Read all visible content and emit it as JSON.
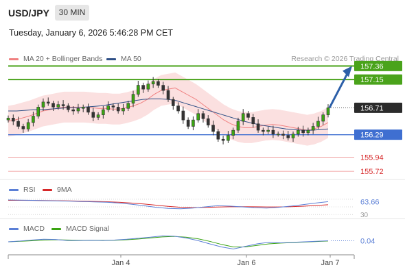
{
  "header": {
    "symbol": "USD/JPY",
    "timeframe": "30 MIN",
    "datetime": "Tuesday, January 6, 2026 5:46:28 PM CET",
    "credit": "Research © 2026 Trading Central"
  },
  "legend_main": [
    {
      "label": "MA 20 + Bollinger Bands",
      "color": "#f08080"
    },
    {
      "label": "MA 50",
      "color": "#2e4f86"
    }
  ],
  "legend_rsi": [
    {
      "label": "RSI",
      "color": "#5b7fd6"
    },
    {
      "label": "9MA",
      "color": "#d62728"
    }
  ],
  "legend_macd": [
    {
      "label": "MACD",
      "color": "#5b7fd6"
    },
    {
      "label": "MACD Signal",
      "color": "#3aa312"
    }
  ],
  "chart_data": [
    {
      "type": "candlestick",
      "panel": "price",
      "ylim": [
        155.55,
        157.45
      ],
      "current_price": 156.71,
      "resistance_levels": [
        157.36,
        157.15
      ],
      "support_levels": [
        156.29,
        155.94,
        155.72
      ],
      "price_labels": [
        "157.36",
        "157.15",
        "156.71",
        "156.29",
        "155.94",
        "155.72"
      ],
      "close_series": [
        156.55,
        156.5,
        156.42,
        156.38,
        156.48,
        156.58,
        156.72,
        156.8,
        156.78,
        156.72,
        156.76,
        156.74,
        156.68,
        156.66,
        156.7,
        156.72,
        156.64,
        156.56,
        156.6,
        156.68,
        156.74,
        156.72,
        156.66,
        156.7,
        156.78,
        156.92,
        157.06,
        157.0,
        157.08,
        157.12,
        157.06,
        156.98,
        156.84,
        156.74,
        156.66,
        156.52,
        156.42,
        156.52,
        156.62,
        156.54,
        156.44,
        156.34,
        156.22,
        156.2,
        156.28,
        156.36,
        156.5,
        156.62,
        156.56,
        156.46,
        156.36,
        156.34,
        156.36,
        156.3,
        156.3,
        156.28,
        156.24,
        156.3,
        156.36,
        156.32,
        156.36,
        156.42,
        156.5,
        156.6,
        156.71
      ],
      "ma20": [
        156.5,
        156.52,
        156.55,
        156.58,
        156.62,
        156.66,
        156.68,
        156.7,
        156.72,
        156.72,
        156.72,
        156.72,
        156.71,
        156.7,
        156.7,
        156.69,
        156.69,
        156.71,
        156.74,
        156.78,
        156.84,
        156.92,
        156.98,
        157.0,
        157.02,
        156.96,
        156.9,
        156.84,
        156.76,
        156.68,
        156.6,
        156.52,
        156.46,
        156.42,
        156.4,
        156.4,
        156.42,
        156.44,
        156.45,
        156.44,
        156.42,
        156.4,
        156.38,
        156.36,
        156.38,
        156.42,
        156.48
      ],
      "ma50": [
        156.66,
        156.66,
        156.67,
        156.68,
        156.68,
        156.69,
        156.7,
        156.71,
        156.71,
        156.72,
        156.73,
        156.74,
        156.76,
        156.78,
        156.8,
        156.82,
        156.84,
        156.85,
        156.85,
        156.84,
        156.82,
        156.78,
        156.74,
        156.7,
        156.66,
        156.62,
        156.58,
        156.54,
        156.5,
        156.47,
        156.44,
        156.42,
        156.4,
        156.38,
        156.37,
        156.36,
        156.36,
        156.37,
        156.38
      ],
      "forecast_target": 157.36
    },
    {
      "type": "line",
      "panel": "RSI",
      "ylim": [
        25,
        75
      ],
      "value_label": "63.66",
      "lower_label": "30",
      "series": [
        {
          "name": "RSI",
          "color": "#5b7fd6",
          "values": [
            68,
            67.5,
            67,
            66,
            65.5,
            65,
            64,
            63,
            62,
            60,
            57,
            53,
            49,
            46,
            45,
            47,
            50,
            53,
            52,
            50,
            48,
            47,
            49,
            52,
            56,
            60,
            63.66
          ]
        },
        {
          "name": "9MA",
          "color": "#d62728",
          "values": [
            67,
            67,
            66.8,
            66.5,
            66,
            65.5,
            65,
            64.2,
            63.4,
            62,
            60,
            57.5,
            54.5,
            51.5,
            49,
            48,
            48.5,
            49.5,
            50.2,
            50.5,
            50.2,
            49.8,
            49.8,
            50.5,
            51.8,
            53.5,
            55.5
          ]
        }
      ]
    },
    {
      "type": "line",
      "panel": "MACD",
      "ylim": [
        -0.4,
        0.4
      ],
      "value_label": "0.04",
      "series": [
        {
          "name": "MACD",
          "color": "#5b7fd6",
          "values": [
            0.0,
            0.03,
            0.07,
            0.1,
            0.09,
            0.05,
            0.05,
            0.06,
            0.05,
            0.07,
            0.1,
            0.14,
            0.18,
            0.23,
            0.22,
            0.15,
            0.05,
            -0.08,
            -0.2,
            -0.28,
            -0.18,
            -0.08,
            -0.02,
            -0.04,
            -0.02,
            0.0,
            0.02,
            0.04
          ]
        },
        {
          "name": "MACD Signal",
          "color": "#3aa312",
          "values": [
            0.0,
            0.02,
            0.04,
            0.07,
            0.08,
            0.07,
            0.06,
            0.06,
            0.06,
            0.06,
            0.08,
            0.11,
            0.15,
            0.19,
            0.21,
            0.18,
            0.12,
            0.02,
            -0.1,
            -0.2,
            -0.2,
            -0.14,
            -0.08,
            -0.05,
            -0.03,
            -0.01,
            0.01,
            0.03
          ]
        }
      ]
    }
  ],
  "x_axis": {
    "ticks": [
      "Jan 4",
      "Jan 6",
      "Jan 7"
    ]
  }
}
